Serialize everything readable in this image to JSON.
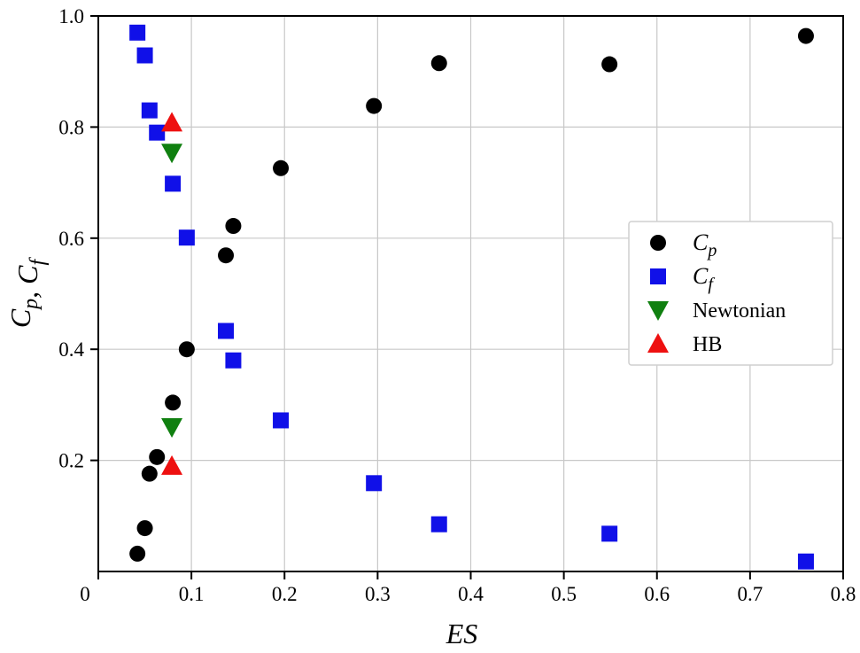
{
  "chart_data": {
    "type": "scatter",
    "title": "",
    "xlabel": "ES",
    "ylabel": "Cp, Cf",
    "xlim": [
      0,
      0.8
    ],
    "ylim": [
      0,
      1.0
    ],
    "x_ticks": [
      "0",
      "0.1",
      "0.2",
      "0.3",
      "0.4",
      "0.5",
      "0.6",
      "0.7",
      "0.8"
    ],
    "y_ticks": [
      "0.2",
      "0.4",
      "0.6",
      "0.8",
      "1.0"
    ],
    "grid": true,
    "legend_position": "right",
    "series": [
      {
        "name": "Cp",
        "marker": "circle",
        "color": "#000000",
        "points": [
          [
            0.042,
            0.032
          ],
          [
            0.05,
            0.078
          ],
          [
            0.055,
            0.176
          ],
          [
            0.063,
            0.206
          ],
          [
            0.08,
            0.304
          ],
          [
            0.095,
            0.4
          ],
          [
            0.137,
            0.569
          ],
          [
            0.145,
            0.622
          ],
          [
            0.196,
            0.726
          ],
          [
            0.296,
            0.838
          ],
          [
            0.366,
            0.915
          ],
          [
            0.549,
            0.913
          ],
          [
            0.76,
            0.964
          ]
        ]
      },
      {
        "name": "Cf",
        "marker": "square",
        "color": "#1010e8",
        "points": [
          [
            0.042,
            0.97
          ],
          [
            0.05,
            0.929
          ],
          [
            0.055,
            0.83
          ],
          [
            0.063,
            0.79
          ],
          [
            0.08,
            0.698
          ],
          [
            0.095,
            0.601
          ],
          [
            0.137,
            0.433
          ],
          [
            0.145,
            0.38
          ],
          [
            0.196,
            0.272
          ],
          [
            0.296,
            0.159
          ],
          [
            0.366,
            0.085
          ],
          [
            0.549,
            0.068
          ],
          [
            0.76,
            0.018
          ]
        ]
      },
      {
        "name": "Newtonian",
        "marker": "triangle-down",
        "color": "#108010",
        "points": [
          [
            0.079,
            0.754
          ],
          [
            0.079,
            0.26
          ]
        ]
      },
      {
        "name": "HB",
        "marker": "triangle-up",
        "color": "#ee1010",
        "points": [
          [
            0.079,
            0.808
          ],
          [
            0.079,
            0.19
          ]
        ]
      }
    ]
  }
}
